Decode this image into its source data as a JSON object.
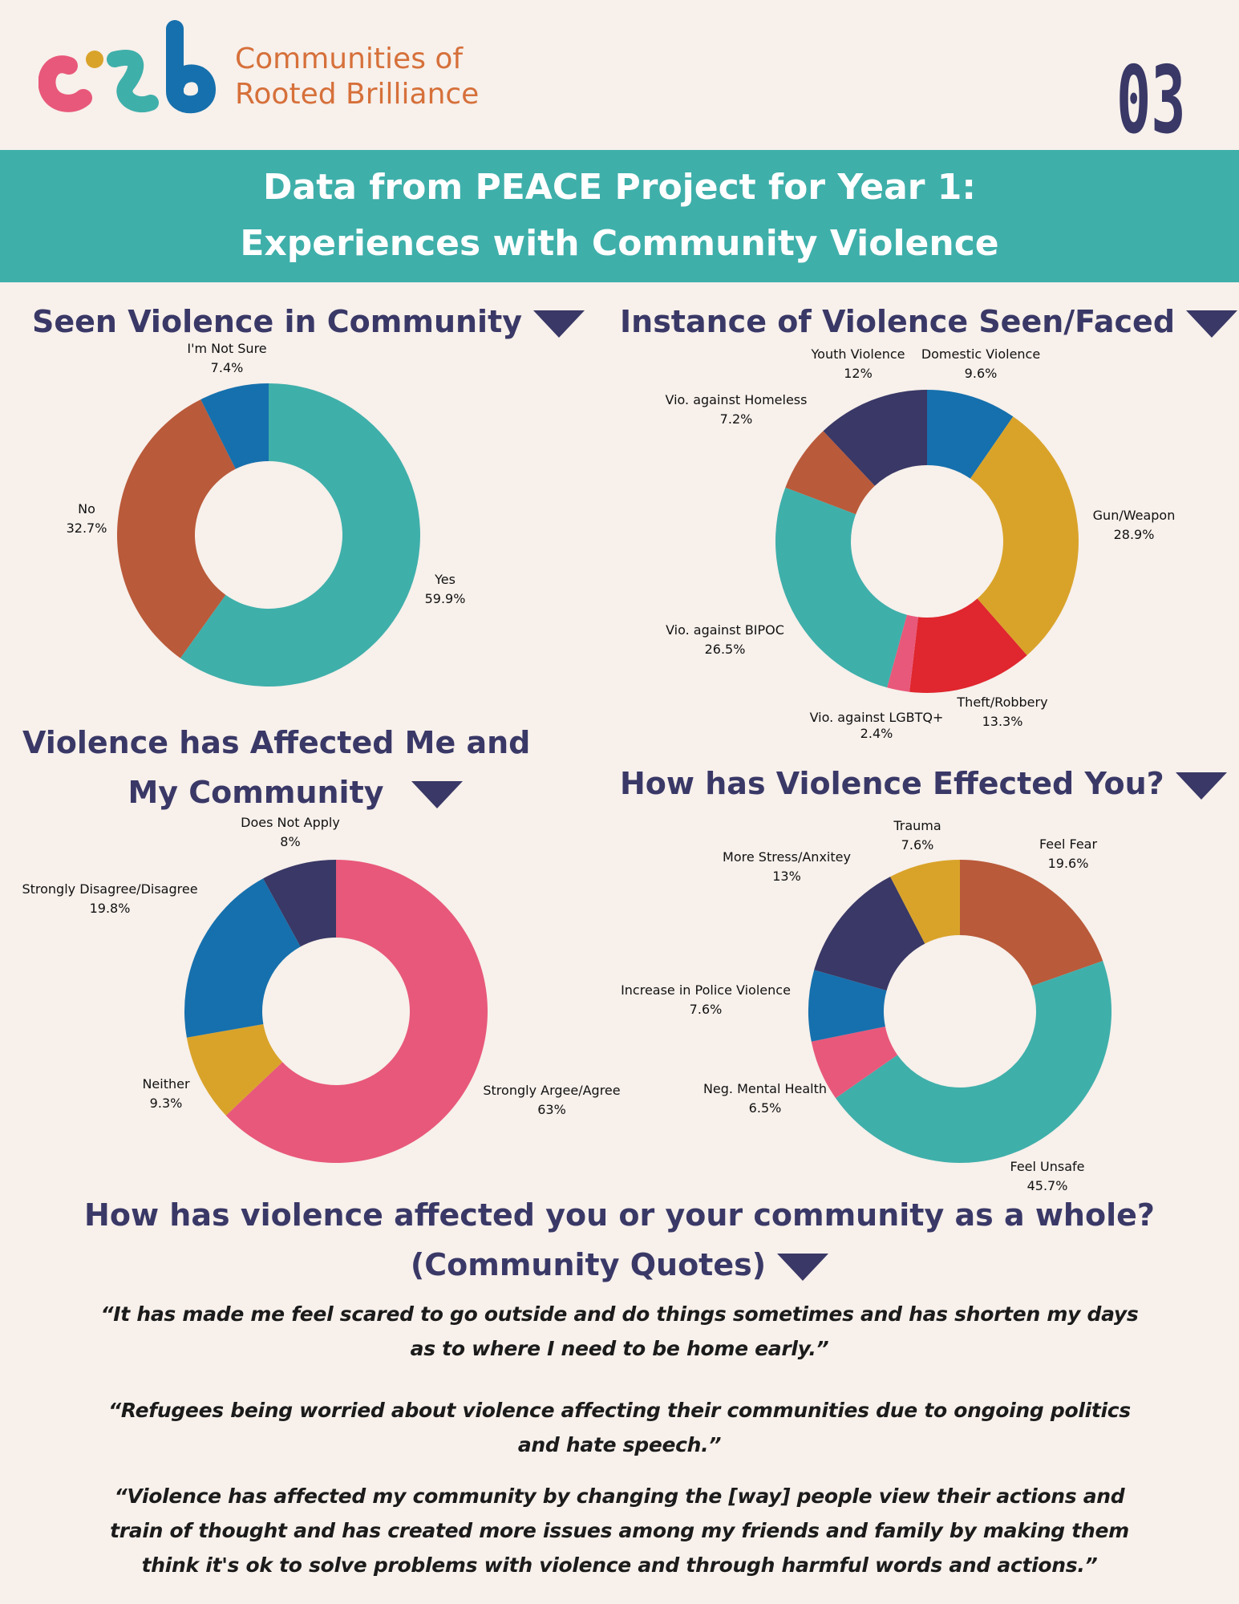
{
  "brand": {
    "logo_text": "crb",
    "name_line1": "Communities of",
    "name_line2": "Rooted Brilliance",
    "colors": {
      "pink": "#e8587a",
      "gold": "#d9a32a",
      "teal": "#3fafaa",
      "blue": "#1670ad",
      "orange": "#d6703a"
    }
  },
  "page_number": "03",
  "banner": {
    "line1": "Data from PEACE Project for Year 1:",
    "line2": "Experiences with Community Violence"
  },
  "chart_data": [
    {
      "type": "pie",
      "title": "Seen Violence in Community",
      "labels": [
        "Yes",
        "No",
        "I'm Not Sure"
      ],
      "values": [
        59.9,
        32.7,
        7.4
      ],
      "display": [
        "59.9%",
        "32.7%",
        "7.4%"
      ],
      "colors": [
        "#3fafaa",
        "#b95a3a",
        "#1670ad"
      ]
    },
    {
      "type": "pie",
      "title": "Instance of Violence Seen/Faced",
      "labels": [
        "Domestic Violence",
        "Gun/Weapon",
        "Theft/Robbery",
        "Vio. against LGBTQ+",
        "Vio. against BIPOC",
        "Vio. against Homeless",
        "Youth Violence"
      ],
      "values": [
        9.6,
        28.9,
        13.3,
        2.4,
        26.5,
        7.2,
        12
      ],
      "display": [
        "9.6%",
        "28.9%",
        "13.3%",
        "2.4%",
        "26.5%",
        "7.2%",
        "12%"
      ],
      "colors": [
        "#1670ad",
        "#d9a32a",
        "#e0262e",
        "#e8587a",
        "#3fafaa",
        "#b95a3a",
        "#393866"
      ]
    },
    {
      "type": "pie",
      "title": "Violence has Affected Me and My Community",
      "labels": [
        "Strongly Argee/Agree",
        "Neither",
        "Strongly Disagree/Disagree",
        "Does Not Apply"
      ],
      "values": [
        63,
        9.3,
        19.8,
        8
      ],
      "display": [
        "63%",
        "9.3%",
        "19.8%",
        "8%"
      ],
      "colors": [
        "#e8587a",
        "#d9a32a",
        "#1670ad",
        "#393866"
      ]
    },
    {
      "type": "pie",
      "title": "How has Violence Effected You?",
      "labels": [
        "Feel Fear",
        "Feel Unsafe",
        "Neg. Mental Health",
        "Increase in Police Violence",
        "More Stress/Anxitey",
        "Trauma"
      ],
      "values": [
        19.6,
        45.7,
        6.5,
        7.6,
        13,
        7.6
      ],
      "display": [
        "19.6%",
        "45.7%",
        "6.5%",
        "7.6%",
        "13%",
        "7.6%"
      ],
      "colors": [
        "#b95a3a",
        "#3fafaa",
        "#e8587a",
        "#1670ad",
        "#393866",
        "#d9a32a"
      ]
    }
  ],
  "headings": {
    "chart1": "Seen Violence in Community",
    "chart2": "Instance of Violence Seen/Faced",
    "chart3_line1": "Violence has Affected Me and",
    "chart3_line2": "My Community",
    "chart4": "How has Violence Effected You?"
  },
  "quotes": {
    "title_line1": "How has violence affected you or your community as a whole?",
    "title_line2": "(Community Quotes)",
    "items": [
      "“It has made me feel scared to go outside and do things sometimes and has shorten my days as to where I need to be home early.”",
      "“Refugees being worried about violence affecting their communities due to ongoing politics and hate speech.”",
      "“Violence has affected my community by changing the [way] people view their actions and train of thought and has created more issues among my friends and family by making them think it's ok to solve problems with violence and through harmful words and actions.”"
    ]
  }
}
